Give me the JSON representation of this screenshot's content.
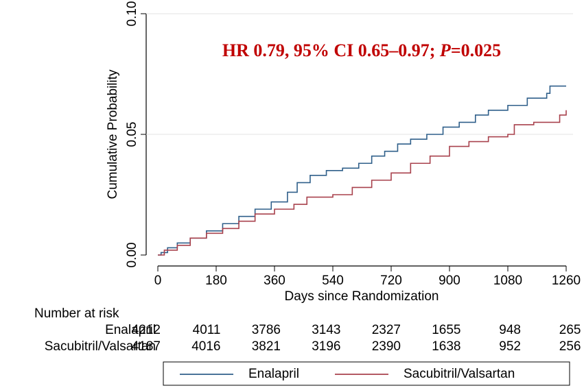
{
  "chart_data": {
    "type": "step",
    "annotation": [
      "HR 0.79, 95% CI 0.65–0.97; ",
      "P",
      "=0.025"
    ],
    "y_label": "Cumulative Probability",
    "x_label": "Days since Randomization",
    "xlim": [
      0,
      1260
    ],
    "ylim": [
      0,
      0.1
    ],
    "xticks": [
      0,
      180,
      360,
      540,
      720,
      900,
      1080,
      1260
    ],
    "yticks": [
      {
        "value": 0,
        "label": "0.00"
      },
      {
        "value": 0.05,
        "label": "0.05"
      },
      {
        "value": 0.1,
        "label": "0.10"
      }
    ],
    "grid": true,
    "risk_title": "Number at risk",
    "series": [
      {
        "name": "Enalapril",
        "color": "#2f5f8a",
        "x": [
          0,
          10,
          30,
          60,
          100,
          150,
          200,
          250,
          300,
          350,
          400,
          430,
          470,
          520,
          570,
          620,
          660,
          700,
          740,
          780,
          830,
          880,
          930,
          980,
          1020,
          1080,
          1140,
          1200,
          1210,
          1260
        ],
        "values": [
          0,
          0.001,
          0.003,
          0.005,
          0.007,
          0.01,
          0.013,
          0.016,
          0.019,
          0.022,
          0.026,
          0.03,
          0.033,
          0.035,
          0.036,
          0.038,
          0.041,
          0.043,
          0.046,
          0.048,
          0.05,
          0.053,
          0.055,
          0.058,
          0.06,
          0.062,
          0.065,
          0.067,
          0.07,
          0.07
        ],
        "at_risk": [
          4212,
          4011,
          3786,
          3143,
          2327,
          1655,
          948,
          265
        ]
      },
      {
        "name": "Sacubitril/Valsartan",
        "color": "#a8414c",
        "x": [
          0,
          20,
          60,
          100,
          150,
          200,
          250,
          300,
          360,
          420,
          460,
          540,
          600,
          660,
          720,
          780,
          840,
          900,
          960,
          1020,
          1080,
          1100,
          1160,
          1230,
          1240,
          1260
        ],
        "values": [
          0,
          0.002,
          0.004,
          0.007,
          0.009,
          0.011,
          0.014,
          0.017,
          0.019,
          0.021,
          0.024,
          0.025,
          0.028,
          0.031,
          0.034,
          0.038,
          0.041,
          0.045,
          0.047,
          0.049,
          0.05,
          0.054,
          0.055,
          0.055,
          0.058,
          0.06
        ],
        "at_risk": [
          4187,
          4016,
          3821,
          3196,
          2390,
          1638,
          952,
          256
        ]
      }
    ],
    "legend": "bottom"
  }
}
